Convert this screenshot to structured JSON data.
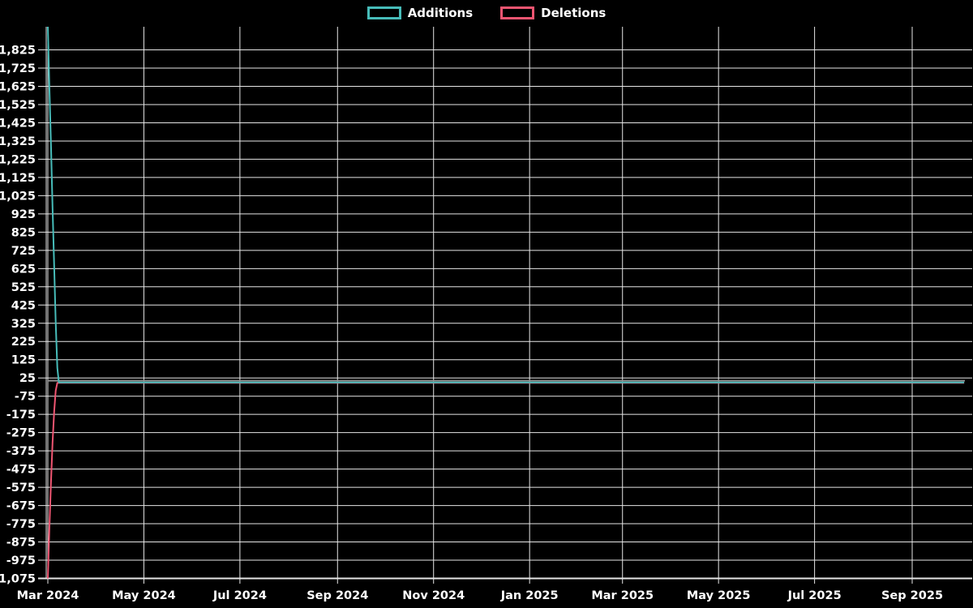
{
  "legend": {
    "items": [
      {
        "label": "Additions",
        "color": "#47bcb9"
      },
      {
        "label": "Deletions",
        "color": "#ef5571"
      }
    ]
  },
  "chart_data": {
    "type": "line",
    "title": "",
    "legend_position": "top",
    "grid": {
      "on": true,
      "color": "#e6e6e6"
    },
    "background_color": "#000000",
    "text_color": "#ffffff",
    "x_axis": {
      "tick_labels": [
        "Mar 2024",
        "May 2024",
        "Jul 2024",
        "Sep 2024",
        "Nov 2024",
        "Jan 2025",
        "Mar 2025",
        "May 2025",
        "Jul 2025",
        "Sep 2025"
      ],
      "tick_day_offsets": [
        0,
        61,
        122,
        184,
        245,
        306,
        365,
        426,
        487,
        549
      ],
      "range_note": "time axis from Mar 2024 to beyond Sep 2025"
    },
    "y_axis": {
      "tick_values": [
        1825,
        1725,
        1625,
        1525,
        1425,
        1325,
        1225,
        1125,
        1025,
        925,
        825,
        725,
        625,
        525,
        425,
        325,
        225,
        125,
        25,
        -75,
        -175,
        -275,
        -375,
        -475,
        -575,
        -675,
        -775,
        -875,
        -975,
        -1075
      ],
      "value_min": -1075,
      "value_max": 1952,
      "tick_step": 100
    },
    "baseline": {
      "value": 10,
      "color": "#8f8f8f"
    },
    "series": [
      {
        "name": "Additions",
        "color": "#47bcb9",
        "points_day_value": [
          [
            0,
            1952
          ],
          [
            1,
            1620
          ],
          [
            2,
            1300
          ],
          [
            3,
            960
          ],
          [
            4,
            640
          ],
          [
            5,
            330
          ],
          [
            6,
            80
          ],
          [
            7,
            0
          ],
          [
            582,
            0
          ]
        ]
      },
      {
        "name": "Deletions",
        "color": "#ef5571",
        "points_day_value": [
          [
            0,
            -1075
          ],
          [
            1,
            -800
          ],
          [
            2,
            -545
          ],
          [
            3,
            -330
          ],
          [
            4,
            -160
          ],
          [
            5,
            -45
          ],
          [
            6,
            -2
          ],
          [
            582,
            -2
          ]
        ]
      }
    ]
  }
}
